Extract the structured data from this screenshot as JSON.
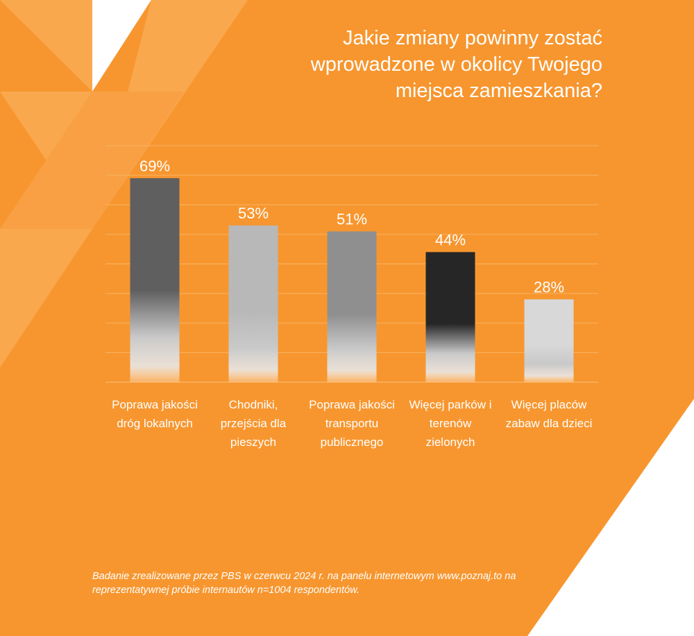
{
  "title": "Jakie zmiany powinny zostać wprowadzone w okolicy Twojego miejsca zamieszkania?",
  "footnote": "Badanie zrealizowane przez PBS w czerwcu 2024 r. na panelu internetowym www.poznaj.to na reprezentatywnej próbie internautów n=1004 respondentów.",
  "colors": {
    "background": "#F7962F",
    "gridline": "#F9B364",
    "text": "#FFFFFF"
  },
  "chart_data": {
    "type": "bar",
    "title": "Jakie zmiany powinny zostać wprowadzone w okolicy Twojego miejsca zamieszkania?",
    "categories": [
      "Poprawa jakości dróg lokalnych",
      "Chodniki, przejścia dla pieszych",
      "Poprawa jakości transportu publicznego",
      "Więcej parków i terenów zielonych",
      "Więcej placów zabaw dla dzieci"
    ],
    "values": [
      69,
      53,
      51,
      44,
      28
    ],
    "value_labels": [
      "69%",
      "53%",
      "51%",
      "44%",
      "28%"
    ],
    "unit": "%",
    "ylim": [
      0,
      80
    ],
    "grid": true,
    "bar_colors": [
      "#5f5f5f",
      "#b8b8b8",
      "#8f8f8f",
      "#262626",
      "#d8d8d8"
    ]
  }
}
